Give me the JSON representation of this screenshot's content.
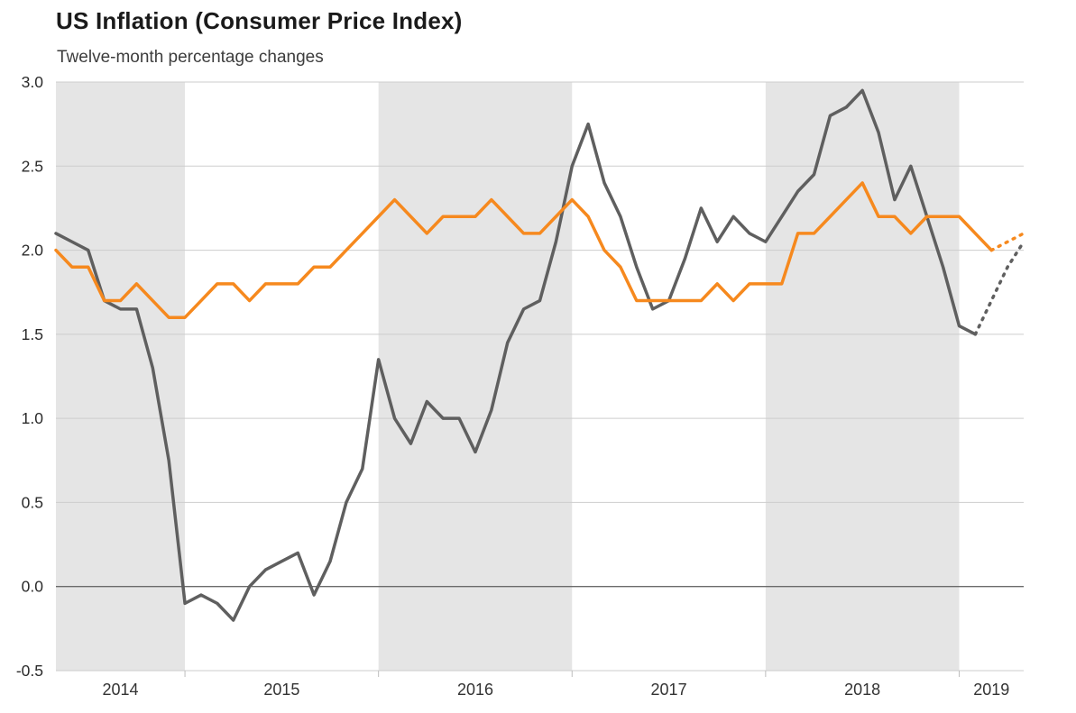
{
  "chart_data": {
    "type": "line",
    "title": "US Inflation (Consumer Price Index)",
    "subtitle": "Twelve-month percentage changes",
    "x_unit": "month",
    "x": [
      "2014-05",
      "2014-06",
      "2014-07",
      "2014-08",
      "2014-09",
      "2014-10",
      "2014-11",
      "2014-12",
      "2015-01",
      "2015-02",
      "2015-03",
      "2015-04",
      "2015-05",
      "2015-06",
      "2015-07",
      "2015-08",
      "2015-09",
      "2015-10",
      "2015-11",
      "2015-12",
      "2016-01",
      "2016-02",
      "2016-03",
      "2016-04",
      "2016-05",
      "2016-06",
      "2016-07",
      "2016-08",
      "2016-09",
      "2016-10",
      "2016-11",
      "2016-12",
      "2017-01",
      "2017-02",
      "2017-03",
      "2017-04",
      "2017-05",
      "2017-06",
      "2017-07",
      "2017-08",
      "2017-09",
      "2017-10",
      "2017-11",
      "2017-12",
      "2018-01",
      "2018-02",
      "2018-03",
      "2018-04",
      "2018-05",
      "2018-06",
      "2018-07",
      "2018-08",
      "2018-09",
      "2018-10",
      "2018-11",
      "2018-12",
      "2019-01",
      "2019-02",
      "2019-03",
      "2019-04",
      "2019-05"
    ],
    "ylim": [
      -0.5,
      3.0
    ],
    "ytick_step": 0.5,
    "ytick_labels": [
      "3.0",
      "2.5",
      "2.0",
      "1.5",
      "1.0",
      "0.5",
      "0.0",
      "-0.5"
    ],
    "year_labels": [
      "2014",
      "2015",
      "2016",
      "2017",
      "2018",
      "2019"
    ],
    "shaded_years": [
      2014,
      2016,
      2018
    ],
    "grid": true,
    "zero_line": true,
    "legend": "none",
    "series": [
      {
        "id": "gray-line",
        "color": "#5f5f5f",
        "line_width": 3.5,
        "forecast_start_index": 57,
        "values": [
          2.1,
          2.05,
          2.0,
          1.7,
          1.65,
          1.65,
          1.3,
          0.75,
          -0.1,
          -0.05,
          -0.1,
          -0.2,
          0.0,
          0.1,
          0.15,
          0.2,
          -0.05,
          0.15,
          0.5,
          0.7,
          1.35,
          1.0,
          0.85,
          1.1,
          1.0,
          1.0,
          0.8,
          1.05,
          1.45,
          1.65,
          1.7,
          2.05,
          2.5,
          2.75,
          2.4,
          2.2,
          1.9,
          1.65,
          1.7,
          1.95,
          2.25,
          2.05,
          2.2,
          2.1,
          2.05,
          2.2,
          2.35,
          2.45,
          2.8,
          2.85,
          2.95,
          2.7,
          2.3,
          2.5,
          2.2,
          1.9,
          1.55,
          1.5,
          1.7,
          1.9,
          2.05
        ]
      },
      {
        "id": "orange-line",
        "color": "#f6891e",
        "line_width": 3.5,
        "forecast_start_index": 58,
        "values": [
          2.0,
          1.9,
          1.9,
          1.7,
          1.7,
          1.8,
          1.7,
          1.6,
          1.6,
          1.7,
          1.8,
          1.8,
          1.7,
          1.8,
          1.8,
          1.8,
          1.9,
          1.9,
          2.0,
          2.1,
          2.2,
          2.3,
          2.2,
          2.1,
          2.2,
          2.2,
          2.2,
          2.3,
          2.2,
          2.1,
          2.1,
          2.2,
          2.3,
          2.2,
          2.0,
          1.9,
          1.7,
          1.7,
          1.7,
          1.7,
          1.7,
          1.8,
          1.7,
          1.8,
          1.8,
          1.8,
          2.1,
          2.1,
          2.2,
          2.3,
          2.4,
          2.2,
          2.2,
          2.1,
          2.2,
          2.2,
          2.2,
          2.1,
          2.0,
          2.05,
          2.1
        ]
      }
    ],
    "style": {
      "band": "#e5e5e5",
      "grid": "#cdcdcd",
      "zero": "#6b6b6b",
      "tick": "#bdbdbd",
      "axis_text": "#2b2b2b"
    }
  }
}
